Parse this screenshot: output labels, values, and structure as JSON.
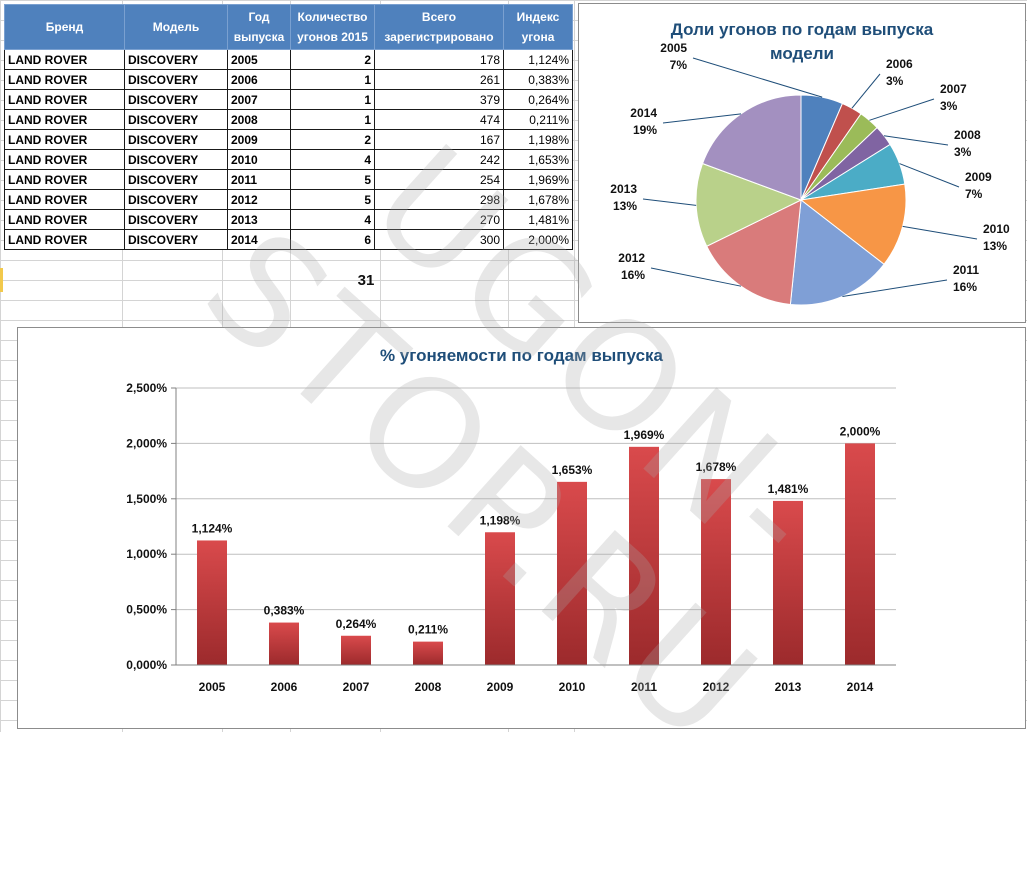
{
  "table": {
    "headers": [
      "Бренд",
      "Модель",
      "Год выпуска",
      "Количество угонов 2015",
      "Всего зарегистрировано",
      "Индекс угона"
    ],
    "rows": [
      {
        "brand": "LAND ROVER",
        "model": "DISCOVERY",
        "year": "2005",
        "count": "2",
        "registered": "178",
        "index": "1,124%"
      },
      {
        "brand": "LAND ROVER",
        "model": "DISCOVERY",
        "year": "2006",
        "count": "1",
        "registered": "261",
        "index": "0,383%"
      },
      {
        "brand": "LAND ROVER",
        "model": "DISCOVERY",
        "year": "2007",
        "count": "1",
        "registered": "379",
        "index": "0,264%"
      },
      {
        "brand": "LAND ROVER",
        "model": "DISCOVERY",
        "year": "2008",
        "count": "1",
        "registered": "474",
        "index": "0,211%"
      },
      {
        "brand": "LAND ROVER",
        "model": "DISCOVERY",
        "year": "2009",
        "count": "2",
        "registered": "167",
        "index": "1,198%"
      },
      {
        "brand": "LAND ROVER",
        "model": "DISCOVERY",
        "year": "2010",
        "count": "4",
        "registered": "242",
        "index": "1,653%"
      },
      {
        "brand": "LAND ROVER",
        "model": "DISCOVERY",
        "year": "2011",
        "count": "5",
        "registered": "254",
        "index": "1,969%"
      },
      {
        "brand": "LAND ROVER",
        "model": "DISCOVERY",
        "year": "2012",
        "count": "5",
        "registered": "298",
        "index": "1,678%"
      },
      {
        "brand": "LAND ROVER",
        "model": "DISCOVERY",
        "year": "2013",
        "count": "4",
        "registered": "270",
        "index": "1,481%"
      },
      {
        "brand": "LAND ROVER",
        "model": "DISCOVERY",
        "year": "2014",
        "count": "6",
        "registered": "300",
        "index": "2,000%"
      }
    ],
    "total_count": "31"
  },
  "watermark": "UGON-STOP.RU",
  "colors": {
    "header_fill": "#4f81bd",
    "title_color": "#1f4e79",
    "bar_color": "#c0393b"
  },
  "chart_data": [
    {
      "type": "pie",
      "title": "Доли угонов по годам выпуска модели",
      "categories": [
        "2005",
        "2006",
        "2007",
        "2008",
        "2009",
        "2010",
        "2011",
        "2012",
        "2013",
        "2014"
      ],
      "values": [
        2,
        1,
        1,
        1,
        2,
        4,
        5,
        5,
        4,
        6
      ],
      "labels": [
        "7%",
        "3%",
        "3%",
        "3%",
        "7%",
        "13%",
        "16%",
        "16%",
        "13%",
        "19%"
      ],
      "colors": [
        "#4f81bd",
        "#c0504d",
        "#9bbb59",
        "#8064a2",
        "#4bacc6",
        "#f79646",
        "#7f9fd6",
        "#d97b7b",
        "#b9d18a",
        "#a390c0"
      ]
    },
    {
      "type": "bar",
      "title": "% угоняемости по годам выпуска",
      "categories": [
        "2005",
        "2006",
        "2007",
        "2008",
        "2009",
        "2010",
        "2011",
        "2012",
        "2013",
        "2014"
      ],
      "values": [
        1.124,
        0.383,
        0.264,
        0.211,
        1.198,
        1.653,
        1.969,
        1.678,
        1.481,
        2.0
      ],
      "value_labels": [
        "1,124%",
        "0,383%",
        "0,264%",
        "0,211%",
        "1,198%",
        "1,653%",
        "1,969%",
        "1,678%",
        "1,481%",
        "2,000%"
      ],
      "ylim": [
        0,
        2.5
      ],
      "yticks": [
        "0,000%",
        "0,500%",
        "1,000%",
        "1,500%",
        "2,000%",
        "2,500%"
      ],
      "xlabel": "",
      "ylabel": "",
      "grid": true
    }
  ]
}
